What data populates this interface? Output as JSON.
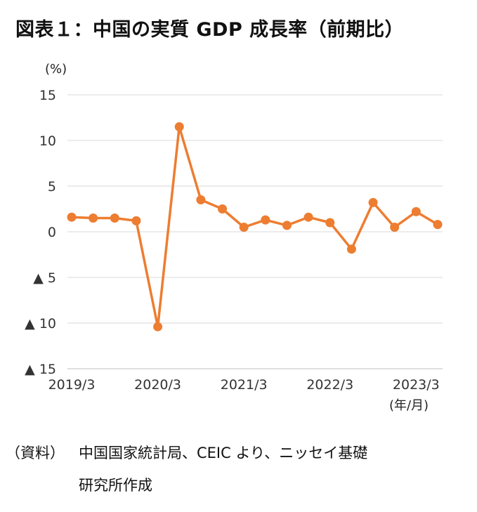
{
  "title": "図表１：中国の実質 GDP 成長率（前期比）",
  "source": {
    "label": "（資料）",
    "line1": "中国国家統計局、CEIC より、ニッセイ基礎",
    "line2": "研究所作成"
  },
  "chart_data": {
    "type": "line",
    "title": "図表１：中国の実質 GDP 成長率（前期比）",
    "ylabel": "(%)",
    "xlabel": "(年/月)",
    "ylim": [
      -15,
      15
    ],
    "yticks": [
      15,
      10,
      5,
      0,
      -5,
      -10,
      -15
    ],
    "ytick_labels": [
      "15",
      "10",
      "5",
      "0",
      "▲ 5",
      "▲ 10",
      "▲ 15"
    ],
    "xtick_labels": [
      "2019/3",
      "2020/3",
      "2021/3",
      "2022/3",
      "2023/3"
    ],
    "x": [
      "2019/3",
      "2019/6",
      "2019/9",
      "2019/12",
      "2020/3",
      "2020/6",
      "2020/9",
      "2020/12",
      "2021/3",
      "2021/6",
      "2021/9",
      "2021/12",
      "2022/3",
      "2022/6",
      "2022/9",
      "2022/12",
      "2023/3",
      "2023/6"
    ],
    "series": [
      {
        "values": [
          1.6,
          1.5,
          1.5,
          1.2,
          -10.4,
          11.5,
          3.5,
          2.5,
          0.5,
          1.3,
          0.7,
          1.6,
          1.0,
          -1.9,
          3.2,
          0.5,
          2.2,
          0.8
        ],
        "color": "#ED7D31"
      }
    ],
    "grid": true,
    "legend": "none"
  }
}
